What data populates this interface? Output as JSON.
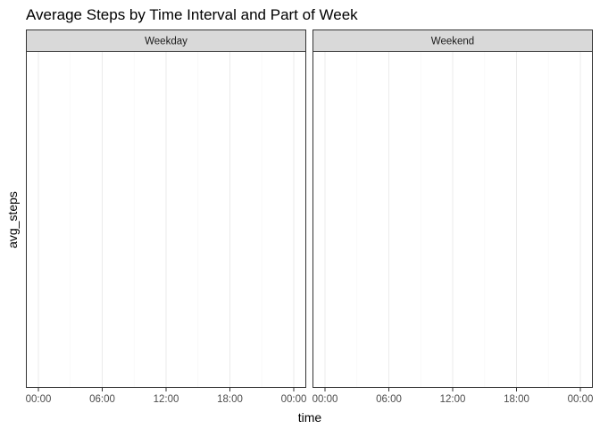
{
  "chart_data": {
    "type": "line",
    "title": "Average Steps by Time Interval and Part of Week",
    "xlabel": "time",
    "ylabel": "avg_steps",
    "facets": [
      {
        "label": "Weekday"
      },
      {
        "label": "Weekend"
      }
    ],
    "x_ticks": [
      "00:00",
      "06:00",
      "12:00",
      "18:00",
      "00:00"
    ],
    "x_range_hours": [
      0,
      24
    ],
    "series": [],
    "grid": true,
    "colors": {
      "panel_border": "#333333",
      "strip_fill": "#d9d9d9",
      "grid_major": "#ebebeb",
      "grid_minor": "#f5f5f5",
      "tick": "#333333"
    }
  }
}
